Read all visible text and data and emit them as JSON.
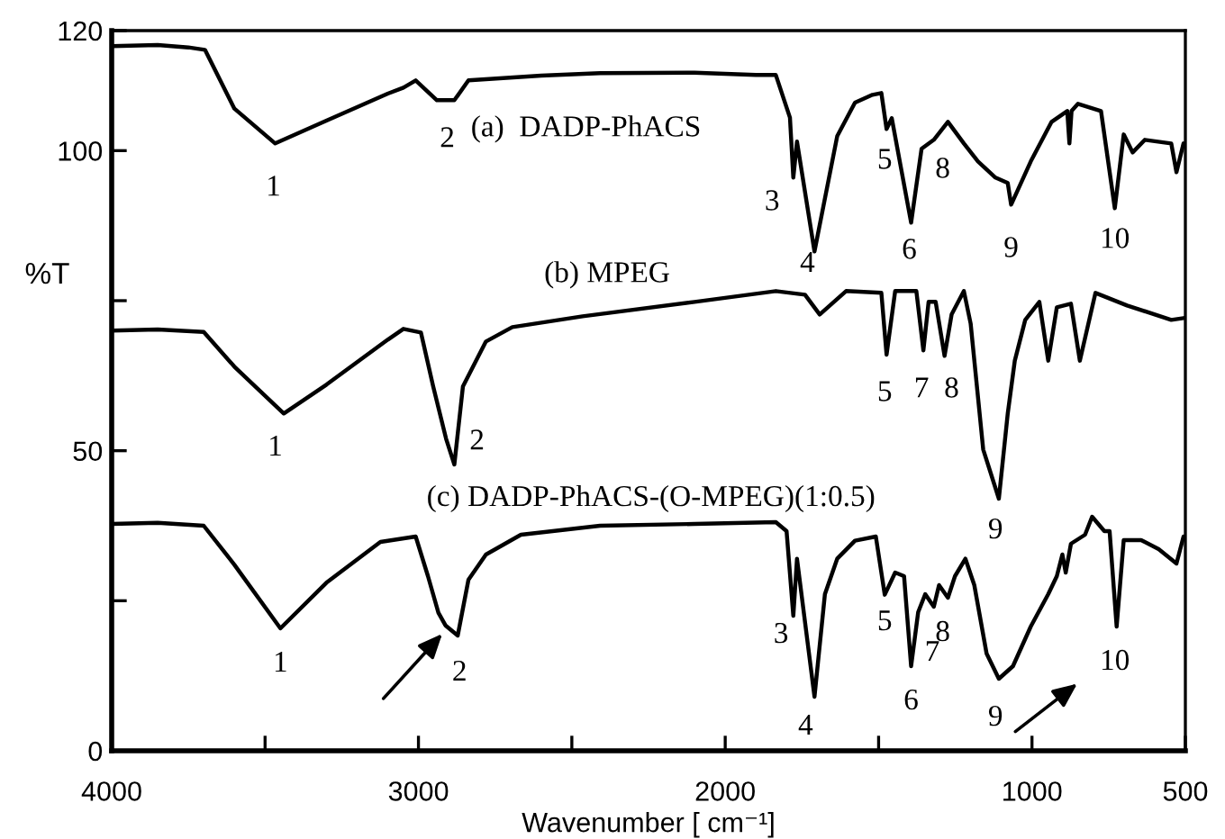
{
  "chart_data": {
    "type": "line",
    "xlabel": "Wavenumber [ cm⁻¹]",
    "ylabel": "%T",
    "xlim": [
      4000,
      500
    ],
    "ylim": [
      0,
      120
    ],
    "xticks": [
      4000,
      {
        "value": 3500,
        "label": null
      },
      3000,
      {
        "value": 2500,
        "label": null
      },
      2000,
      {
        "value": 1500,
        "label": null
      },
      1000,
      500
    ],
    "yticks": [
      0,
      {
        "value": 25,
        "label": null
      },
      50,
      {
        "value": 75,
        "label": null
      },
      100,
      120
    ],
    "grid": false,
    "marker": "none",
    "line_style": "solid",
    "series": [
      {
        "color": "#000000",
        "x": [
          4000,
          3850,
          3750,
          3696,
          3600,
          3467,
          3300,
          3100,
          3049,
          3009,
          2940,
          2883,
          2837,
          2600,
          2408,
          2100,
          1900,
          1835,
          1789,
          1778,
          1766,
          1709,
          1635,
          1577,
          1520,
          1491,
          1474,
          1457,
          1394,
          1360,
          1320,
          1274,
          1222,
          1176,
          1119,
          1079,
          1068,
          1004,
          936,
          885,
          878,
          871,
          850,
          775,
          730,
          701,
          672,
          632,
          546,
          529,
          506
        ],
        "values": [
          117.4,
          117.6,
          117.2,
          116.8,
          107,
          101.2,
          105,
          109.5,
          110.5,
          111.7,
          108.4,
          108.4,
          111.7,
          112.5,
          112.9,
          113,
          112.6,
          112.6,
          105.5,
          95.5,
          101.5,
          83.2,
          102.4,
          108,
          109.3,
          109.6,
          103.6,
          105.4,
          88,
          100.3,
          101.8,
          104.8,
          101.2,
          98.2,
          95.5,
          94.6,
          91,
          98.2,
          104.8,
          106.6,
          101.2,
          106.6,
          107.8,
          106.6,
          90.4,
          102.7,
          99.7,
          101.8,
          101.2,
          96.4,
          101.2
        ]
      },
      {
        "color": "#000000",
        "x": [
          4000,
          3850,
          3700,
          3600,
          3439,
          3300,
          3100,
          3049,
          2992,
          2952,
          2910,
          2883,
          2855,
          2780,
          2694,
          2465,
          2100,
          1835,
          1740,
          1692,
          1606,
          1491,
          1474,
          1446,
          1377,
          1354,
          1337,
          1314,
          1285,
          1262,
          1222,
          1200,
          1159,
          1108,
          1079,
          1056,
          1022,
          976,
          947,
          919,
          873,
          844,
          793,
          690,
          546,
          506
        ],
        "values": [
          70,
          70.2,
          69.8,
          64,
          56.2,
          61,
          68.5,
          70.3,
          69.7,
          60.7,
          52,
          47.7,
          60.7,
          68.2,
          70.6,
          72.4,
          74.8,
          76.6,
          76,
          72.7,
          76.6,
          76.3,
          66,
          76.6,
          76.6,
          66.7,
          74.8,
          74.8,
          65.8,
          72.7,
          76.6,
          71.2,
          50.2,
          42,
          56.2,
          65,
          71.8,
          74.8,
          65,
          73.9,
          74.5,
          65,
          76.3,
          74.2,
          71.8,
          72.1
        ]
      },
      {
        "color": "#000000",
        "x": [
          4000,
          3850,
          3700,
          3600,
          3450,
          3300,
          3124,
          3009,
          2969,
          2935,
          2912,
          2872,
          2837,
          2780,
          2666,
          2408,
          2100,
          1835,
          1800,
          1778,
          1766,
          1709,
          1675,
          1635,
          1577,
          1509,
          1480,
          1446,
          1417,
          1394,
          1371,
          1348,
          1320,
          1303,
          1274,
          1251,
          1217,
          1188,
          1148,
          1108,
          1062,
          1004,
          947,
          919,
          901,
          890,
          873,
          827,
          804,
          764,
          747,
          724,
          701,
          644,
          587,
          529,
          506
        ],
        "values": [
          37.8,
          38,
          37.5,
          31,
          20.4,
          28,
          34.8,
          35.7,
          29.1,
          23,
          20.9,
          19.2,
          28.5,
          32.7,
          36,
          37.5,
          37.8,
          38.1,
          36.6,
          22.5,
          32,
          9,
          26.1,
          32,
          35,
          35.7,
          26,
          29.7,
          29.1,
          14.1,
          23.1,
          26.1,
          24,
          27.6,
          25.5,
          29.1,
          32,
          27.6,
          16.2,
          12,
          14.1,
          20.7,
          26.1,
          29.1,
          32.7,
          29.7,
          34.5,
          36,
          39,
          36.6,
          36.6,
          20.7,
          35.1,
          35.1,
          33.6,
          31.2,
          35.7
        ]
      }
    ],
    "annotations": [
      "(a)  DADP-PhACS",
      "1",
      "2",
      "3",
      "4",
      "5",
      "6",
      "8",
      "9",
      "10",
      "(b) MPEG",
      "1",
      "2",
      "5",
      "7",
      "8",
      "9",
      "(c) DADP-PhACS-(O-MPEG)(1:0.5)",
      "1",
      "2",
      "3",
      "4",
      "5",
      "6",
      "7",
      "8",
      "9",
      "10"
    ]
  }
}
